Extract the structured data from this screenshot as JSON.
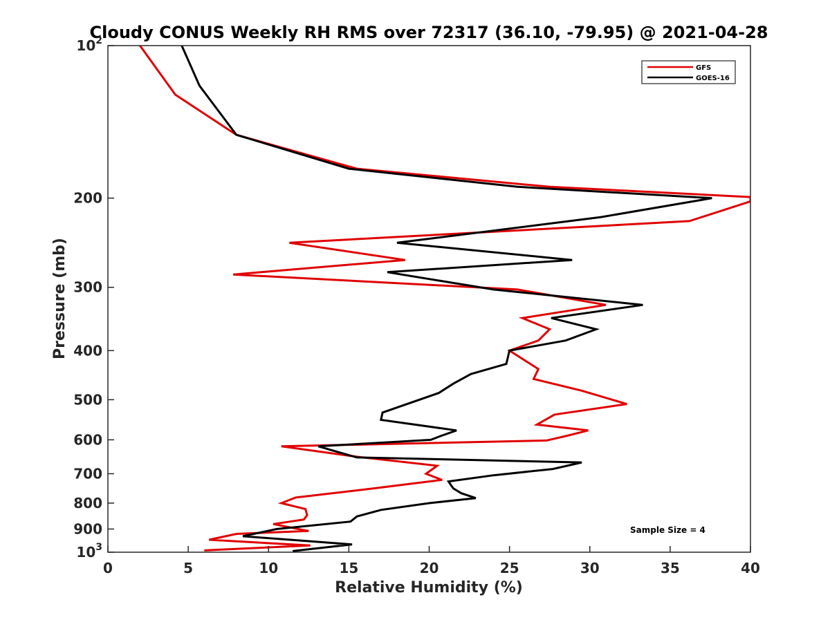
{
  "chart_data": {
    "type": "line",
    "title": "Cloudy CONUS Weekly RH RMS over 72317 (36.10, -79.95) @ 2021-04-28",
    "xlabel": "Relative Humidity (%)",
    "ylabel": "Pressure (mb)",
    "xlim": [
      0,
      40
    ],
    "ylim": [
      100,
      1000
    ],
    "y_scale": "log",
    "y_reversed": true,
    "grid": false,
    "legend_position": "top-right",
    "annotation": "Sample Size = 4",
    "x_ticks": [
      0,
      5,
      10,
      15,
      20,
      25,
      30,
      35,
      40
    ],
    "x_tick_labels": [
      "0",
      "5",
      "10",
      "15",
      "20",
      "25",
      "30",
      "35",
      "40"
    ],
    "y_ticks": [
      {
        "value": 100,
        "base": "10",
        "exp": "2"
      },
      {
        "value": 200,
        "label": "200"
      },
      {
        "value": 300,
        "label": "300"
      },
      {
        "value": 400,
        "label": "400"
      },
      {
        "value": 500,
        "label": "500"
      },
      {
        "value": 600,
        "label": "600"
      },
      {
        "value": 700,
        "label": "700"
      },
      {
        "value": 800,
        "label": "800"
      },
      {
        "value": 900,
        "label": "900"
      },
      {
        "value": 1000,
        "base": "10",
        "exp": "3"
      }
    ],
    "series": [
      {
        "name": "GFS",
        "color": "#e00000",
        "points": [
          [
            2.0,
            100
          ],
          [
            4.2,
            125
          ],
          [
            8.0,
            150
          ],
          [
            15.5,
            175
          ],
          [
            27.5,
            190
          ],
          [
            40.0,
            199
          ],
          [
            40.0,
            203
          ],
          [
            36.2,
            222
          ],
          [
            11.3,
            245
          ],
          [
            18.5,
            265
          ],
          [
            7.8,
            283
          ],
          [
            25.5,
            303
          ],
          [
            31.0,
            325
          ],
          [
            25.8,
            345
          ],
          [
            27.5,
            363
          ],
          [
            26.8,
            382
          ],
          [
            25.0,
            400
          ],
          [
            26.8,
            435
          ],
          [
            26.5,
            455
          ],
          [
            29.5,
            480
          ],
          [
            32.3,
            510
          ],
          [
            27.8,
            535
          ],
          [
            26.7,
            560
          ],
          [
            29.9,
            575
          ],
          [
            28.5,
            590
          ],
          [
            27.3,
            602
          ],
          [
            10.8,
            618
          ],
          [
            15.5,
            648
          ],
          [
            20.5,
            675
          ],
          [
            19.8,
            700
          ],
          [
            20.8,
            720
          ],
          [
            16.3,
            750
          ],
          [
            11.7,
            780
          ],
          [
            10.8,
            800
          ],
          [
            12.3,
            822
          ],
          [
            12.4,
            845
          ],
          [
            12.2,
            862
          ],
          [
            10.3,
            880
          ],
          [
            11.7,
            898
          ],
          [
            12.5,
            908
          ],
          [
            8.0,
            920
          ],
          [
            6.3,
            945
          ],
          [
            12.6,
            970
          ],
          [
            6.0,
            992
          ]
        ]
      },
      {
        "name": "GOES-16",
        "color": "#000000",
        "points": [
          [
            4.6,
            100
          ],
          [
            5.7,
            120
          ],
          [
            8.0,
            150
          ],
          [
            15.0,
            175
          ],
          [
            25.5,
            190
          ],
          [
            37.6,
            200
          ],
          [
            30.7,
            218
          ],
          [
            18.0,
            245
          ],
          [
            28.9,
            265
          ],
          [
            17.4,
            280
          ],
          [
            24.0,
            303
          ],
          [
            33.3,
            325
          ],
          [
            27.6,
            345
          ],
          [
            30.4,
            363
          ],
          [
            28.5,
            382
          ],
          [
            25.0,
            400
          ],
          [
            24.8,
            425
          ],
          [
            22.6,
            445
          ],
          [
            21.5,
            465
          ],
          [
            20.6,
            485
          ],
          [
            17.1,
            530
          ],
          [
            17.0,
            548
          ],
          [
            21.7,
            575
          ],
          [
            20.7,
            590
          ],
          [
            20.1,
            600
          ],
          [
            13.1,
            618
          ],
          [
            15.5,
            650
          ],
          [
            29.5,
            665
          ],
          [
            27.7,
            685
          ],
          [
            24.0,
            705
          ],
          [
            21.2,
            725
          ],
          [
            21.5,
            748
          ],
          [
            22.0,
            765
          ],
          [
            22.9,
            782
          ],
          [
            20.0,
            800
          ],
          [
            17.0,
            825
          ],
          [
            15.5,
            850
          ],
          [
            15.1,
            870
          ],
          [
            10.5,
            900
          ],
          [
            8.4,
            930
          ],
          [
            15.2,
            965
          ],
          [
            11.5,
            995
          ]
        ]
      }
    ]
  }
}
